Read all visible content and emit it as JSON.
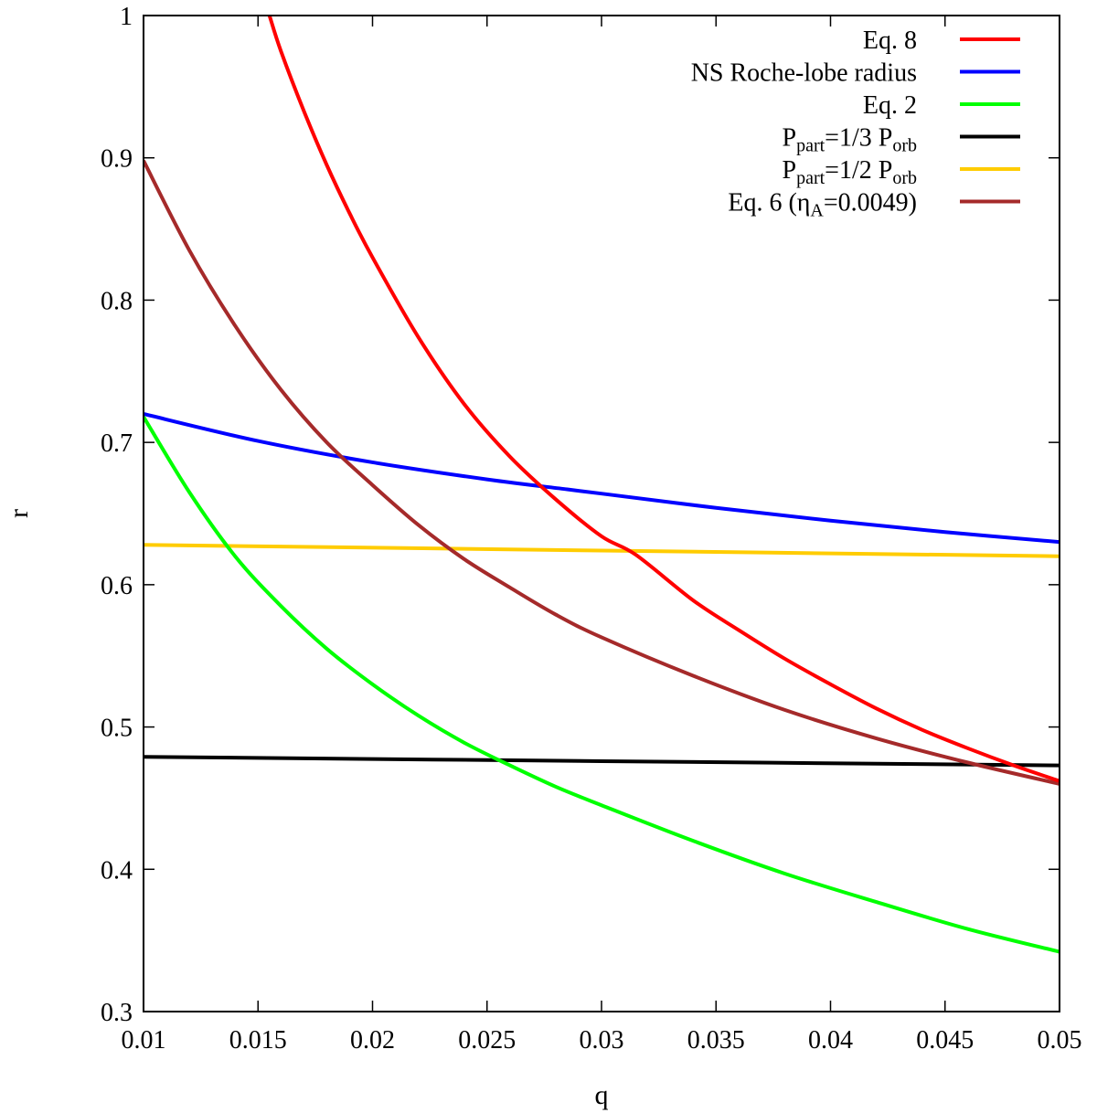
{
  "chart_data": {
    "type": "line",
    "title": "",
    "xlabel": "q",
    "ylabel": "r",
    "xlim": [
      0.01,
      0.05
    ],
    "ylim": [
      0.3,
      1.0
    ],
    "x_ticks": [
      0.01,
      0.015,
      0.02,
      0.025,
      0.03,
      0.035,
      0.04,
      0.045,
      0.05
    ],
    "x_tick_labels": [
      "0.01",
      "0.015",
      "0.02",
      "0.025",
      "0.03",
      "0.035",
      "0.04",
      "0.045",
      "0.05"
    ],
    "y_ticks": [
      0.3,
      0.4,
      0.5,
      0.6,
      0.7,
      0.8,
      0.9,
      1.0
    ],
    "y_tick_labels": [
      "0.3",
      "0.4",
      "0.5",
      "0.6",
      "0.7",
      "0.8",
      "0.9",
      "1"
    ],
    "grid": false,
    "legend_position": "top-right",
    "series": [
      {
        "name": "Eq. 8",
        "legend": {
          "main": "Eq. 8"
        },
        "color": "#ff0000",
        "x": [
          0.0155,
          0.016,
          0.017,
          0.018,
          0.019,
          0.02,
          0.022,
          0.024,
          0.026,
          0.028,
          0.03,
          0.0315,
          0.034,
          0.036,
          0.038,
          0.04,
          0.042,
          0.044,
          0.046,
          0.048,
          0.05
        ],
        "y": [
          1.0,
          0.975,
          0.933,
          0.895,
          0.861,
          0.83,
          0.774,
          0.727,
          0.69,
          0.66,
          0.634,
          0.621,
          0.589,
          0.568,
          0.548,
          0.53,
          0.513,
          0.498,
          0.485,
          0.473,
          0.462
        ]
      },
      {
        "name": "NS Roche-lobe radius",
        "legend": {
          "main": "NS Roche-lobe radius"
        },
        "color": "#0000ff",
        "x": [
          0.01,
          0.015,
          0.02,
          0.025,
          0.0285,
          0.03,
          0.035,
          0.04,
          0.045,
          0.05
        ],
        "y": [
          0.72,
          0.701,
          0.686,
          0.674,
          0.667,
          0.664,
          0.654,
          0.645,
          0.637,
          0.63
        ]
      },
      {
        "name": "Eq. 2",
        "legend": {
          "main": "Eq. 2"
        },
        "color": "#00ff00",
        "x": [
          0.01,
          0.012,
          0.014,
          0.016,
          0.018,
          0.02,
          0.022,
          0.024,
          0.026,
          0.028,
          0.03,
          0.034,
          0.038,
          0.042,
          0.046,
          0.05
        ],
        "y": [
          0.718,
          0.665,
          0.62,
          0.585,
          0.555,
          0.53,
          0.508,
          0.489,
          0.473,
          0.458,
          0.445,
          0.42,
          0.397,
          0.377,
          0.358,
          0.342
        ]
      },
      {
        "name": "Ppart=1/3 Porb",
        "legend": {
          "main": "P",
          "sub1": "part",
          "mid": "=1/3 P",
          "sub2": "orb"
        },
        "color": "#000000",
        "x": [
          0.01,
          0.03,
          0.05
        ],
        "y": [
          0.479,
          0.476,
          0.473
        ]
      },
      {
        "name": "Ppart=1/2 Porb",
        "legend": {
          "main": "P",
          "sub1": "part",
          "mid": "=1/2 P",
          "sub2": "orb"
        },
        "color": "#ffcc00",
        "x": [
          0.01,
          0.03,
          0.05
        ],
        "y": [
          0.628,
          0.624,
          0.62
        ]
      },
      {
        "name": "Eq. 6 (ηA=0.0049)",
        "legend": {
          "main": "Eq. 6 (η",
          "sub1": "A",
          "mid": "=0.0049)"
        },
        "color": "#a52a2a",
        "x": [
          0.01,
          0.012,
          0.014,
          0.016,
          0.018,
          0.02,
          0.022,
          0.024,
          0.026,
          0.028,
          0.03,
          0.034,
          0.038,
          0.042,
          0.046,
          0.05
        ],
        "y": [
          0.898,
          0.835,
          0.782,
          0.737,
          0.7,
          0.67,
          0.642,
          0.618,
          0.598,
          0.579,
          0.563,
          0.536,
          0.512,
          0.492,
          0.475,
          0.46
        ]
      }
    ]
  }
}
